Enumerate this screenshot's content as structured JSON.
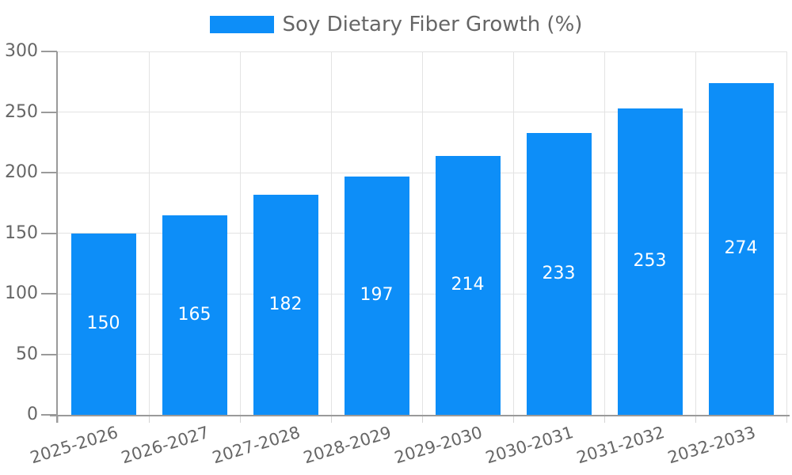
{
  "chart_data": {
    "type": "bar",
    "title": "Soy Dietary Fiber Growth (%)",
    "legend_label": "Soy Dietary Fiber Growth (%)",
    "legend_position": "top",
    "categories": [
      "2025-2026",
      "2026-2027",
      "2027-2028",
      "2028-2029",
      "2029-2030",
      "2030-2031",
      "2031-2032",
      "2032-2033"
    ],
    "values": [
      150,
      165,
      182,
      197,
      214,
      233,
      253,
      274
    ],
    "xlabel": "",
    "ylabel": "",
    "ylim": [
      0,
      300
    ],
    "yticks": [
      0,
      50,
      100,
      150,
      200,
      250,
      300
    ],
    "grid": true,
    "bar_value_labels_visible": true,
    "colors": {
      "bar": "#0d8ef8",
      "bar_label": "#ffffff",
      "axis_text": "#666666",
      "grid_line": "#e3e3e3",
      "axis_line": "#9a9a9a",
      "x_tick": "#d4d4d4",
      "background": "#ffffff"
    }
  }
}
